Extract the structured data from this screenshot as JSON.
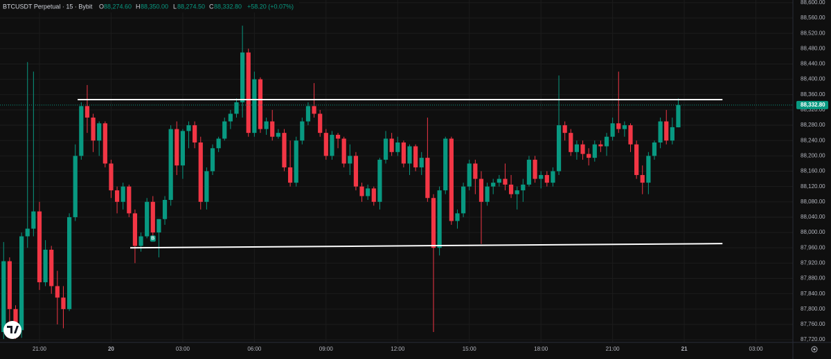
{
  "chart_data": {
    "type": "candlestick",
    "header": {
      "symbol": "BTCUSDT Perpetual · 15 · Bybit",
      "o_key": "O",
      "open": "88,274.60",
      "h_key": "H",
      "high": "88,350.00",
      "l_key": "L",
      "low": "88,274.50",
      "c_key": "C",
      "close": "88,332.80",
      "change": "+58.20 (+0.07%)"
    },
    "colors": {
      "up": "#089981",
      "down": "#f23645",
      "level": "#ffffff",
      "grid": "#1c1c1c",
      "last": "#089981"
    },
    "open": [
      87740,
      87925,
      87800,
      87745,
      87990,
      88010,
      88055,
      87870,
      87955,
      87860,
      87830,
      87800,
      88040,
      88200,
      88330,
      88300,
      88240,
      88285,
      88180,
      88110,
      88080,
      88120,
      88050,
      87965,
      87990,
      88080,
      88000,
      88035,
      88085,
      88270,
      88175,
      88265,
      88280,
      88235,
      88080,
      88160,
      88220,
      88245,
      88290,
      88310,
      88340,
      88470,
      88260,
      88400,
      88270,
      88290,
      88250,
      88260,
      88170,
      88130,
      88240,
      88290,
      88330,
      88310,
      88260,
      88200,
      88255,
      88245,
      88180,
      88200,
      88120,
      88095,
      88115,
      88080,
      88190,
      88245,
      88210,
      88235,
      88180,
      88225,
      88170,
      88195,
      88090,
      87960,
      88110,
      88245,
      88030,
      88050,
      88120,
      88180,
      88140,
      88080,
      88120,
      88130,
      88140,
      88125,
      88100,
      88110,
      88125,
      88190,
      88140,
      88150,
      88130,
      88160,
      88280,
      88260,
      88210,
      88230,
      88205,
      88195,
      88230,
      88225,
      88250,
      88285,
      88270,
      88280,
      88230,
      88150,
      88130,
      88200,
      88235,
      88290,
      88240,
      88274.6
    ],
    "high": [
      87975,
      87935,
      87810,
      88000,
      88445,
      88420,
      88080,
      87980,
      87965,
      87900,
      87860,
      88050,
      88230,
      88340,
      88385,
      88310,
      88290,
      88290,
      88190,
      88120,
      88130,
      88125,
      88060,
      88000,
      88090,
      88095,
      88035,
      88095,
      88280,
      88290,
      88270,
      88290,
      88290,
      88250,
      88170,
      88230,
      88250,
      88300,
      88320,
      88350,
      88540,
      88480,
      88420,
      88405,
      88300,
      88320,
      88270,
      88270,
      88240,
      88250,
      88300,
      88340,
      88390,
      88320,
      88270,
      88265,
      88260,
      88250,
      88230,
      88210,
      88130,
      88125,
      88120,
      88195,
      88265,
      88260,
      88250,
      88240,
      88230,
      88230,
      88210,
      88300,
      88100,
      88120,
      88250,
      88250,
      88060,
      88130,
      88190,
      88190,
      88160,
      88130,
      88140,
      88150,
      88180,
      88150,
      88120,
      88140,
      88200,
      88200,
      88160,
      88160,
      88170,
      88410,
      88290,
      88270,
      88240,
      88240,
      88220,
      88240,
      88240,
      88260,
      88300,
      88420,
      88290,
      88285,
      88240,
      88175,
      88210,
      88240,
      88300,
      88320,
      88300,
      88350
    ],
    "low": [
      87722,
      87760,
      87722,
      87725,
      87960,
      87990,
      87850,
      87860,
      87840,
      87760,
      87750,
      87795,
      88030,
      88190,
      88260,
      88210,
      88200,
      88170,
      88090,
      88050,
      88060,
      88040,
      87920,
      87950,
      87985,
      87990,
      87935,
      88020,
      88070,
      88150,
      88140,
      88220,
      88220,
      88060,
      88060,
      88150,
      88210,
      88240,
      88270,
      88300,
      88300,
      88250,
      88250,
      88260,
      88255,
      88240,
      88245,
      88160,
      88120,
      88120,
      88230,
      88280,
      88300,
      88250,
      88190,
      88190,
      88220,
      88170,
      88150,
      88110,
      88080,
      88085,
      88070,
      88060,
      88180,
      88200,
      88200,
      88170,
      88150,
      88160,
      88150,
      88080,
      87740,
      87940,
      88100,
      88020,
      88010,
      88040,
      88110,
      88100,
      87970,
      88070,
      88100,
      88120,
      88110,
      88090,
      88060,
      88080,
      88120,
      88130,
      88115,
      88120,
      88120,
      88150,
      88240,
      88200,
      88190,
      88190,
      88175,
      88185,
      88210,
      88200,
      88240,
      88260,
      88250,
      88210,
      88140,
      88100,
      88100,
      88190,
      88220,
      88230,
      88230,
      88274.5
    ],
    "close": [
      87925,
      87800,
      87745,
      87990,
      88010,
      88055,
      87870,
      87955,
      87860,
      87830,
      87800,
      88040,
      88200,
      88330,
      88300,
      88240,
      88285,
      88180,
      88110,
      88080,
      88120,
      88050,
      87965,
      87990,
      88080,
      88000,
      88035,
      88085,
      88270,
      88175,
      88265,
      88280,
      88235,
      88080,
      88160,
      88220,
      88245,
      88290,
      88310,
      88340,
      88470,
      88260,
      88400,
      88270,
      88290,
      88250,
      88260,
      88170,
      88130,
      88240,
      88290,
      88330,
      88310,
      88260,
      88200,
      88255,
      88245,
      88180,
      88200,
      88120,
      88095,
      88115,
      88080,
      88190,
      88245,
      88210,
      88235,
      88180,
      88225,
      88170,
      88195,
      88090,
      87960,
      88110,
      88245,
      88030,
      88050,
      88120,
      88180,
      88140,
      88080,
      88120,
      88130,
      88140,
      88125,
      88100,
      88110,
      88125,
      88190,
      88140,
      88150,
      88130,
      88160,
      88280,
      88260,
      88210,
      88230,
      88205,
      88195,
      88230,
      88225,
      88250,
      88285,
      88270,
      88280,
      88230,
      88150,
      88130,
      88200,
      88235,
      88290,
      88240,
      88275,
      88332.8
    ],
    "xlim": [
      -0.61,
      132.2
    ],
    "ylim": [
      87713,
      88607
    ],
    "xticks": [
      {
        "value": 6,
        "label": "21:00"
      },
      {
        "value": 18,
        "label": "20"
      },
      {
        "value": 30,
        "label": "03:00"
      },
      {
        "value": 42,
        "label": "06:00"
      },
      {
        "value": 54,
        "label": "09:00"
      },
      {
        "value": 66,
        "label": "12:00"
      },
      {
        "value": 78,
        "label": "15:00"
      },
      {
        "value": 90,
        "label": "18:00"
      },
      {
        "value": 102,
        "label": "21:00"
      },
      {
        "value": 114,
        "label": "21"
      },
      {
        "value": 126,
        "label": "03:00"
      }
    ],
    "yticks": [
      {
        "value": 88600,
        "label": "88,600.00"
      },
      {
        "value": 88560,
        "label": "88,560.00"
      },
      {
        "value": 88520,
        "label": "88,520.00"
      },
      {
        "value": 88480,
        "label": "88,480.00"
      },
      {
        "value": 88440,
        "label": "88,440.00"
      },
      {
        "value": 88400,
        "label": "88,400.00"
      },
      {
        "value": 88360,
        "label": "88,360.00"
      },
      {
        "value": 88320,
        "label": "88,320.00"
      },
      {
        "value": 88280,
        "label": "88,280.00"
      },
      {
        "value": 88240,
        "label": "88,240.00"
      },
      {
        "value": 88200,
        "label": "88,200.00"
      },
      {
        "value": 88160,
        "label": "88,160.00"
      },
      {
        "value": 88120,
        "label": "88,120.00"
      },
      {
        "value": 88080,
        "label": "88,080.00"
      },
      {
        "value": 88040,
        "label": "88,040.00"
      },
      {
        "value": 88000,
        "label": "88,000.00"
      },
      {
        "value": 87960,
        "label": "87,960.00"
      },
      {
        "value": 87920,
        "label": "87,920.00"
      },
      {
        "value": 87880,
        "label": "87,880.00"
      },
      {
        "value": 87840,
        "label": "87,840.00"
      },
      {
        "value": 87800,
        "label": "87,800.00"
      },
      {
        "value": 87760,
        "label": "87,760.00"
      },
      {
        "value": 87720,
        "label": "87,720.00"
      }
    ],
    "grid": true,
    "last_price": {
      "value": 88332.8,
      "label": "88,332.80"
    },
    "levels": [
      {
        "x": [
          12.4,
          120.4
        ],
        "y": [
          88347,
          88347
        ]
      },
      {
        "x": [
          21.2,
          120.4
        ],
        "y": [
          87960,
          87971
        ]
      }
    ],
    "markers": [
      {
        "x": 25,
        "y": 87985,
        "label": "B"
      }
    ]
  }
}
